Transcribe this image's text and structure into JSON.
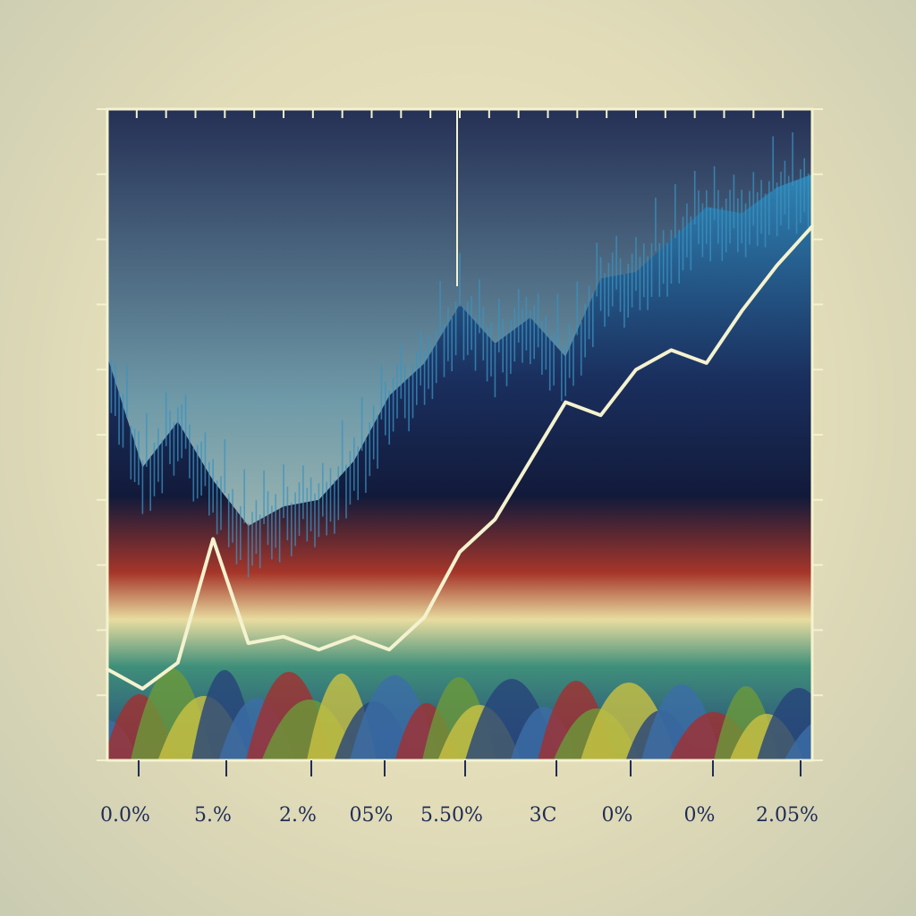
{
  "chart_data": {
    "type": "area",
    "title": "",
    "xlabel": "",
    "ylabel": "",
    "x_tick_labels": [
      "0.0%",
      "5.%",
      "2.%",
      "05%",
      "5.50%",
      "3C",
      "0%",
      "0%",
      "2.05%"
    ],
    "grid": false,
    "legend": "none",
    "ylim": [
      0,
      100
    ],
    "x": [
      0,
      5,
      10,
      15,
      20,
      25,
      30,
      35,
      40,
      45,
      50,
      55,
      60,
      65,
      70,
      75,
      80,
      85,
      90,
      95,
      100
    ],
    "series": [
      {
        "kind": "line",
        "values": [
          14,
          11,
          15,
          34,
          18,
          19,
          17,
          19,
          17,
          22,
          32,
          37,
          46,
          55,
          53,
          60,
          63,
          61,
          69,
          76,
          82
        ]
      },
      {
        "kind": "area",
        "values": [
          62,
          45,
          52,
          43,
          36,
          39,
          40,
          46,
          56,
          61,
          70,
          64,
          68,
          62,
          74,
          75,
          80,
          85,
          84,
          88,
          90
        ]
      }
    ],
    "colors": {
      "line": "#f4f2cf",
      "plot_bg_top": "#253055",
      "plot_bg_bottom": "#e9e4c2",
      "area_top": "#2f84b4",
      "area_mid": "#121a3a",
      "band_red": "#a6362a",
      "band_yellow": "#e8dca0",
      "ridges": [
        "#3c6ea8",
        "#a22f2f",
        "#6b9a3a",
        "#c9c244",
        "#27447a"
      ]
    }
  }
}
